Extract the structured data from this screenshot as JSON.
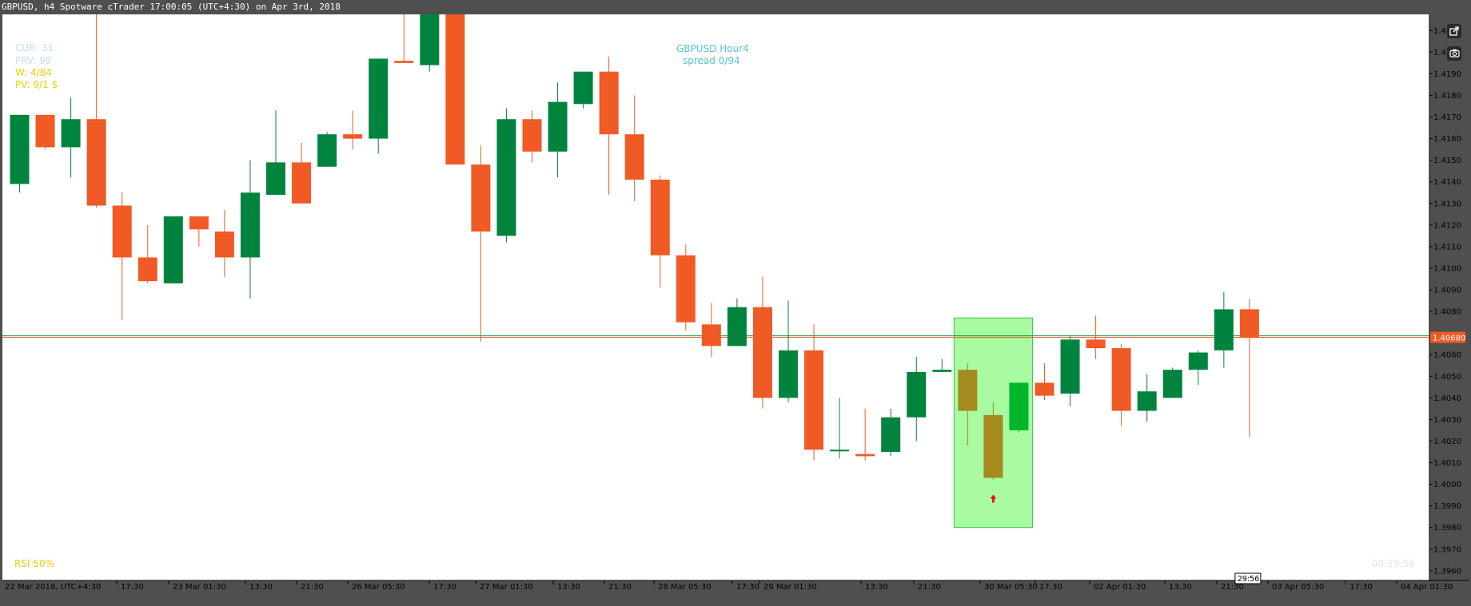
{
  "window": {
    "title": "GBPUSD, h4 Spotware cTrader 17:00:05 (UTC+4:30) on Apr 3rd, 2018"
  },
  "overlay": {
    "cur": "CUR: 31",
    "prv": "PRV: 98",
    "w": "W: 4/84",
    "pv": "PV: 9/1 $",
    "rsi": "RSI 50%",
    "symbol_title": "GBPUSD  Hour4",
    "spread": "spread   0/94",
    "ghost_timer": "00:29:56"
  },
  "colors": {
    "bull": "#00843d",
    "bear": "#f05a24",
    "highlight_fill": "#a8fba0",
    "highlight_border": "#39c45a",
    "highlight_bear": "#a58a1e",
    "highlight_bull": "#00b62a",
    "price_line_orange": "#f05a24",
    "price_line_green": "#0a9a3a",
    "arrow": "#ee1111"
  },
  "icons": [
    "popout-icon",
    "camera-icon"
  ],
  "chart_data": {
    "type": "candlestick",
    "symbol": "GBPUSD",
    "timeframe": "h4",
    "ylim": [
      1.39555,
      1.42175
    ],
    "y_ticks": [
      "1.4210",
      "1.4200",
      "1.4190",
      "1.4180",
      "1.4170",
      "1.4160",
      "1.4150",
      "1.4140",
      "1.4130",
      "1.4120",
      "1.4110",
      "1.4100",
      "1.4090",
      "1.4080",
      "1.4060",
      "1.4050",
      "1.4040",
      "1.4030",
      "1.4020",
      "1.4010",
      "1.4000",
      "1.3990",
      "1.3980",
      "1.3970",
      "1.3960"
    ],
    "x_labels": [
      "22 Mar 2018, UTC+4:30",
      "17:30",
      "23 Mar 01:30",
      "13:30",
      "21:30",
      "26 Mar 05:30",
      "17:30",
      "27 Mar 01:30",
      "13:30",
      "21:30",
      "28 Mar 05:30",
      "17:30",
      "29 Mar 01:30",
      "13:30",
      "21:30",
      "30 Mar 05:30",
      "17:30",
      "02 Apr 01:30",
      "13:30",
      "21:30",
      "03 Apr 05:30",
      "17:30",
      "04 Apr 01:30"
    ],
    "current_price": "1.40680",
    "timer": "29:56",
    "grid": false,
    "candles": [
      {
        "o": 1.4139,
        "h": 1.4171,
        "l": 1.4135,
        "c": 1.4171
      },
      {
        "o": 1.4171,
        "h": 1.4171,
        "l": 1.4155,
        "c": 1.4156
      },
      {
        "o": 1.4156,
        "h": 1.4179,
        "l": 1.4142,
        "c": 1.4169
      },
      {
        "o": 1.4169,
        "h": 1.4265,
        "l": 1.4128,
        "c": 1.4129
      },
      {
        "o": 1.4129,
        "h": 1.4135,
        "l": 1.4076,
        "c": 1.4105
      },
      {
        "o": 1.4105,
        "h": 1.412,
        "l": 1.4093,
        "c": 1.4094
      },
      {
        "o": 1.4093,
        "h": 1.4124,
        "l": 1.4093,
        "c": 1.4124
      },
      {
        "o": 1.4124,
        "h": 1.4124,
        "l": 1.411,
        "c": 1.4118
      },
      {
        "o": 1.4117,
        "h": 1.4127,
        "l": 1.4096,
        "c": 1.4105
      },
      {
        "o": 1.4105,
        "h": 1.415,
        "l": 1.4086,
        "c": 1.4135
      },
      {
        "o": 1.4134,
        "h": 1.4173,
        "l": 1.4134,
        "c": 1.4149
      },
      {
        "o": 1.4149,
        "h": 1.4158,
        "l": 1.413,
        "c": 1.413
      },
      {
        "o": 1.4147,
        "h": 1.4163,
        "l": 1.4147,
        "c": 1.4162
      },
      {
        "o": 1.4162,
        "h": 1.4173,
        "l": 1.4155,
        "c": 1.416
      },
      {
        "o": 1.416,
        "h": 1.4197,
        "l": 1.4153,
        "c": 1.4197
      },
      {
        "o": 1.4196,
        "h": 1.423,
        "l": 1.4195,
        "c": 1.4195
      },
      {
        "o": 1.4194,
        "h": 1.4238,
        "l": 1.4191,
        "c": 1.4235
      },
      {
        "o": 1.4235,
        "h": 1.4248,
        "l": 1.4148,
        "c": 1.4148
      },
      {
        "o": 1.4148,
        "h": 1.4157,
        "l": 1.4066,
        "c": 1.4117
      },
      {
        "o": 1.4115,
        "h": 1.4174,
        "l": 1.4112,
        "c": 1.4169
      },
      {
        "o": 1.4169,
        "h": 1.4173,
        "l": 1.4149,
        "c": 1.4154
      },
      {
        "o": 1.4154,
        "h": 1.4186,
        "l": 1.4142,
        "c": 1.4177
      },
      {
        "o": 1.4176,
        "h": 1.4191,
        "l": 1.4174,
        "c": 1.4191
      },
      {
        "o": 1.4191,
        "h": 1.4198,
        "l": 1.4134,
        "c": 1.4162
      },
      {
        "o": 1.4162,
        "h": 1.418,
        "l": 1.4131,
        "c": 1.4141
      },
      {
        "o": 1.4141,
        "h": 1.4143,
        "l": 1.4091,
        "c": 1.4106
      },
      {
        "o": 1.4106,
        "h": 1.4111,
        "l": 1.4071,
        "c": 1.4075
      },
      {
        "o": 1.4074,
        "h": 1.4084,
        "l": 1.4059,
        "c": 1.4064
      },
      {
        "o": 1.4064,
        "h": 1.4086,
        "l": 1.4064,
        "c": 1.4082
      },
      {
        "o": 1.4082,
        "h": 1.4096,
        "l": 1.4035,
        "c": 1.404
      },
      {
        "o": 1.404,
        "h": 1.4085,
        "l": 1.4038,
        "c": 1.4062
      },
      {
        "o": 1.4062,
        "h": 1.4074,
        "l": 1.4011,
        "c": 1.4016
      },
      {
        "o": 1.4016,
        "h": 1.404,
        "l": 1.4012,
        "c": 1.4016
      },
      {
        "o": 1.4014,
        "h": 1.4035,
        "l": 1.4011,
        "c": 1.4013
      },
      {
        "o": 1.4015,
        "h": 1.4035,
        "l": 1.4013,
        "c": 1.4031
      },
      {
        "o": 1.4031,
        "h": 1.4059,
        "l": 1.402,
        "c": 1.4052
      },
      {
        "o": 1.4052,
        "h": 1.4058,
        "l": 1.4052,
        "c": 1.4053
      },
      {
        "o": 1.4053,
        "h": 1.4056,
        "l": 1.4018,
        "c": 1.4034
      },
      {
        "o": 1.4032,
        "h": 1.4038,
        "l": 1.4002,
        "c": 1.4003
      },
      {
        "o": 1.4025,
        "h": 1.4047,
        "l": 1.4024,
        "c": 1.4047
      },
      {
        "o": 1.4047,
        "h": 1.4056,
        "l": 1.4039,
        "c": 1.4041
      },
      {
        "o": 1.4042,
        "h": 1.4069,
        "l": 1.4036,
        "c": 1.4067
      },
      {
        "o": 1.4067,
        "h": 1.4078,
        "l": 1.4058,
        "c": 1.4063
      },
      {
        "o": 1.4063,
        "h": 1.4065,
        "l": 1.4027,
        "c": 1.4034
      },
      {
        "o": 1.4034,
        "h": 1.4051,
        "l": 1.4029,
        "c": 1.4043
      },
      {
        "o": 1.404,
        "h": 1.4054,
        "l": 1.404,
        "c": 1.4053
      },
      {
        "o": 1.4053,
        "h": 1.4062,
        "l": 1.4046,
        "c": 1.4061
      },
      {
        "o": 1.4062,
        "h": 1.4089,
        "l": 1.4054,
        "c": 1.4081
      },
      {
        "o": 1.4081,
        "h": 1.4086,
        "l": 1.4022,
        "c": 1.4068
      }
    ],
    "highlight": {
      "from_candle": 37,
      "to_candle": 39,
      "price_high": 1.4077,
      "price_low": 1.398,
      "signal": "buy-arrow",
      "signal_candle": 38
    }
  }
}
